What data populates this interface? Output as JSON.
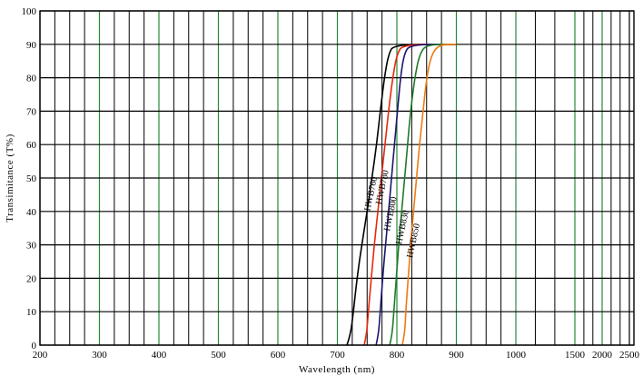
{
  "chart_data": {
    "type": "line",
    "title": "",
    "xlabel": "Wavelength (nm)",
    "ylabel": "Transimitance (T%)",
    "ylim": [
      0,
      100
    ],
    "yticks": [
      0,
      10,
      20,
      30,
      40,
      50,
      60,
      70,
      80,
      90,
      100
    ],
    "xtick_labels": [
      "200",
      "300",
      "400",
      "500",
      "600",
      "700",
      "800",
      "900",
      "1000",
      "1500",
      "2000",
      "2500"
    ],
    "grid": true,
    "series": [
      {
        "name": "HWB760",
        "color": "#000000",
        "points": [
          [
            716,
            0
          ],
          [
            722,
            3
          ],
          [
            727,
            10
          ],
          [
            733,
            20
          ],
          [
            741,
            30
          ],
          [
            750,
            40
          ],
          [
            758,
            50
          ],
          [
            766,
            60
          ],
          [
            772,
            70
          ],
          [
            779,
            80
          ],
          [
            786,
            87
          ],
          [
            795,
            90
          ],
          [
            900,
            90
          ]
        ]
      },
      {
        "name": "HWB780",
        "color": "#e8280a",
        "points": [
          [
            745,
            0
          ],
          [
            749,
            3
          ],
          [
            752,
            10
          ],
          [
            757,
            20
          ],
          [
            762,
            30
          ],
          [
            768,
            40
          ],
          [
            774,
            50
          ],
          [
            780,
            60
          ],
          [
            786,
            70
          ],
          [
            793,
            80
          ],
          [
            800,
            87
          ],
          [
            810,
            90
          ],
          [
            900,
            90
          ]
        ]
      },
      {
        "name": "HWB800",
        "color": "#1c1470",
        "points": [
          [
            765,
            0
          ],
          [
            769,
            3
          ],
          [
            772,
            10
          ],
          [
            776,
            20
          ],
          [
            781,
            30
          ],
          [
            786,
            40
          ],
          [
            791,
            50
          ],
          [
            796,
            60
          ],
          [
            801,
            70
          ],
          [
            806,
            80
          ],
          [
            812,
            87
          ],
          [
            822,
            90
          ],
          [
            900,
            90
          ]
        ]
      },
      {
        "name": "HWB830",
        "color": "#1f7a2a",
        "points": [
          [
            788,
            0
          ],
          [
            792,
            3
          ],
          [
            795,
            10
          ],
          [
            799,
            20
          ],
          [
            803,
            30
          ],
          [
            808,
            40
          ],
          [
            813,
            50
          ],
          [
            818,
            60
          ],
          [
            823,
            70
          ],
          [
            830,
            80
          ],
          [
            838,
            87
          ],
          [
            850,
            90
          ],
          [
            900,
            90
          ]
        ]
      },
      {
        "name": "HWB850",
        "color": "#f07a10",
        "points": [
          [
            809,
            0
          ],
          [
            813,
            3
          ],
          [
            815,
            10
          ],
          [
            819,
            20
          ],
          [
            823,
            30
          ],
          [
            828,
            40
          ],
          [
            833,
            50
          ],
          [
            838,
            60
          ],
          [
            844,
            70
          ],
          [
            850,
            80
          ],
          [
            858,
            87
          ],
          [
            872,
            90
          ],
          [
            900,
            90
          ]
        ]
      }
    ]
  }
}
